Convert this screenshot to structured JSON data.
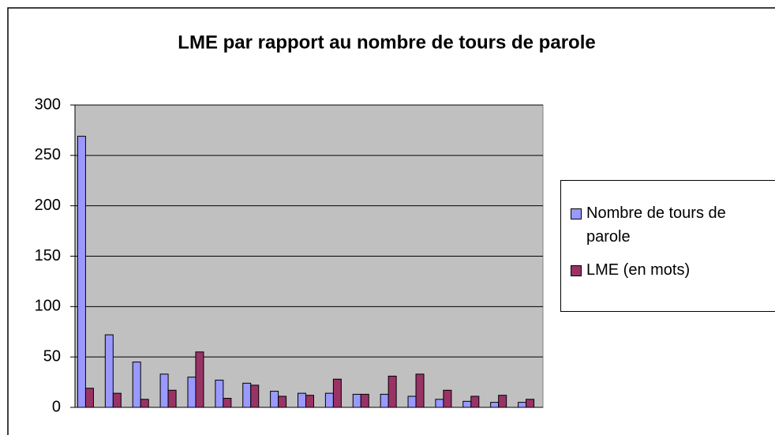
{
  "chart_data": {
    "type": "bar",
    "title": "LME par rapport au nombre de tours de parole",
    "categories": [
      null,
      null,
      null,
      null,
      null,
      null,
      null,
      null,
      null,
      null,
      null,
      null,
      null,
      null,
      null,
      null,
      null
    ],
    "series": [
      {
        "name": "Nombre de tours de parole",
        "color": "#9999ff",
        "values": [
          269,
          72,
          45,
          33,
          30,
          27,
          24,
          16,
          14,
          14,
          13,
          13,
          11,
          8,
          6,
          5,
          5
        ]
      },
      {
        "name": "LME (en mots)",
        "color": "#993366",
        "values": [
          19,
          14,
          8,
          17,
          55,
          9,
          22,
          11,
          12,
          28,
          13,
          31,
          33,
          17,
          11,
          12,
          8
        ]
      }
    ],
    "ylim": [
      0,
      300
    ],
    "yticks": [
      0,
      50,
      100,
      150,
      200,
      250,
      300
    ],
    "grid": true,
    "legend": "right",
    "plot_background": "#c0c0c0"
  }
}
